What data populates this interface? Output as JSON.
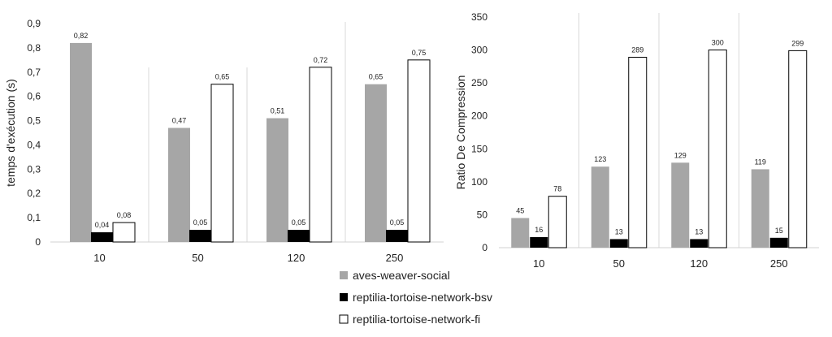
{
  "chart_data": [
    {
      "type": "bar",
      "ylabel": "temps d'exécution (s)",
      "xlabel": "",
      "categories": [
        "10",
        "50",
        "120",
        "250"
      ],
      "ylim": [
        0,
        0.9
      ],
      "yticks": [
        "0",
        "0,1",
        "0,2",
        "0,3",
        "0,4",
        "0,5",
        "0,6",
        "0,7",
        "0,8",
        "0,9"
      ],
      "grid": "vertical separators between categories",
      "series": [
        {
          "name": "aves-weaver-social",
          "values": [
            0.82,
            0.47,
            0.51,
            0.65
          ],
          "labels": [
            "0,82",
            "0,47",
            "0,51",
            "0,65"
          ],
          "color": "#a6a6a6"
        },
        {
          "name": "reptilia-tortoise-network-bsv",
          "values": [
            0.04,
            0.05,
            0.05,
            0.05
          ],
          "labels": [
            "0,04",
            "0,05",
            "0,05",
            "0,05"
          ],
          "color": "#000000"
        },
        {
          "name": "reptilia-tortoise-network-fi",
          "values": [
            0.08,
            0.65,
            0.72,
            0.75
          ],
          "labels": [
            "0,08",
            "0,65",
            "0,72",
            "0,75"
          ],
          "color": "#ffffff"
        }
      ]
    },
    {
      "type": "bar",
      "ylabel": "Ratio De Compression",
      "xlabel": "",
      "categories": [
        "10",
        "50",
        "120",
        "250"
      ],
      "ylim": [
        0,
        350
      ],
      "yticks": [
        "0",
        "50",
        "100",
        "150",
        "200",
        "250",
        "300",
        "350"
      ],
      "grid": "vertical separators between categories",
      "series": [
        {
          "name": "aves-weaver-social",
          "values": [
            45,
            123,
            129,
            119
          ],
          "labels": [
            "45",
            "123",
            "129",
            "119"
          ],
          "color": "#a6a6a6"
        },
        {
          "name": "reptilia-tortoise-network-bsv",
          "values": [
            16,
            13,
            13,
            15
          ],
          "labels": [
            "16",
            "13",
            "13",
            "15"
          ],
          "color": "#000000"
        },
        {
          "name": "reptilia-tortoise-network-fi",
          "values": [
            78,
            289,
            300,
            299
          ],
          "labels": [
            "78",
            "289",
            "300",
            "299"
          ],
          "color": "#ffffff"
        }
      ]
    }
  ],
  "legend": {
    "placement": "bottom-center",
    "items": [
      {
        "label": "aves-weaver-social",
        "color": "#a6a6a6"
      },
      {
        "label": "reptilia-tortoise-network-bsv",
        "color": "#000000"
      },
      {
        "label": "reptilia-tortoise-network-fi",
        "color": "#ffffff"
      }
    ]
  }
}
